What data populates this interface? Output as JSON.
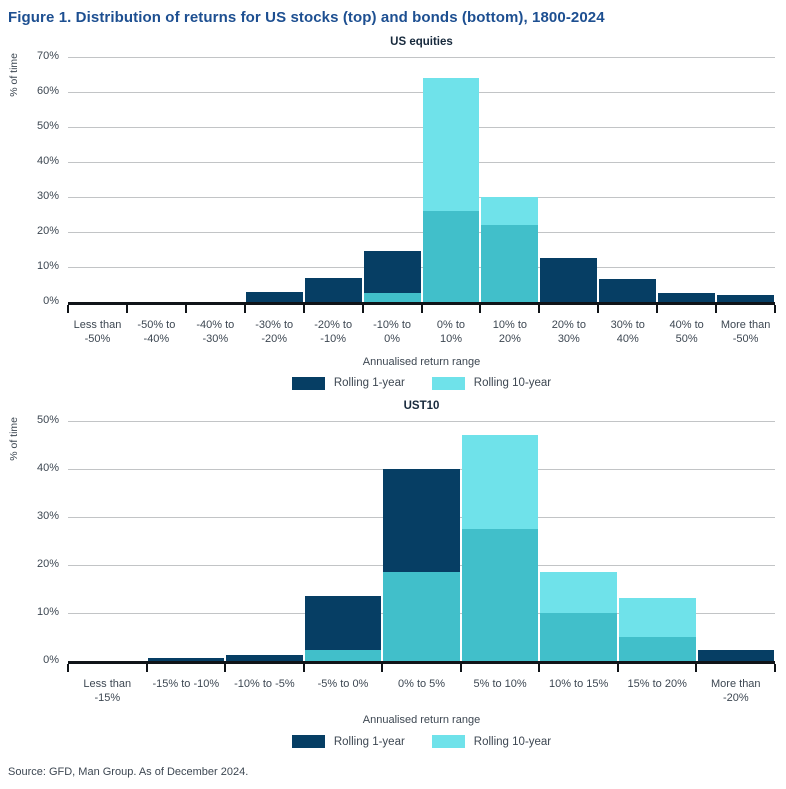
{
  "figure_title": "Figure 1. Distribution of returns for US stocks (top) and bonds (bottom), 1800-2024",
  "footer": "Source: GFD, Man Group. As of December 2024.",
  "colors": {
    "navy": "#063e64",
    "cyan": "#6fe2ea",
    "overlap": "#41bfca",
    "title_blue": "#1d4f91",
    "grid": "#c2c4c6",
    "axis": "#101418",
    "text": "#3d4752"
  },
  "chart_data": [
    {
      "type": "bar",
      "title": "US equities",
      "ylabel": "% of time",
      "xlabel": "Annualised return range",
      "ylim": [
        0,
        70
      ],
      "ytick_step": 10,
      "grid": true,
      "legend_position": "bottom",
      "bar_style": "overlapping",
      "categories": [
        "Less than -50%",
        "-50% to -40%",
        "-40% to -30%",
        "-30% to -20%",
        "-20% to -10%",
        "-10% to 0%",
        "0% to 10%",
        "10% to 20%",
        "20% to 30%",
        "30% to 40%",
        "40% to 50%",
        "More than -50%"
      ],
      "series": [
        {
          "name": "Rolling 1-year",
          "values": [
            0,
            0,
            0,
            3,
            7,
            14.5,
            26,
            22,
            12.5,
            6.5,
            2.5,
            2
          ]
        },
        {
          "name": "Rolling 10-year",
          "values": [
            0,
            0,
            0,
            0,
            0,
            2.5,
            64,
            30,
            0,
            0,
            0,
            0
          ]
        }
      ]
    },
    {
      "type": "bar",
      "title": "UST10",
      "ylabel": "% of time",
      "xlabel": "Annualised return range",
      "ylim": [
        0,
        50
      ],
      "ytick_step": 10,
      "grid": true,
      "legend_position": "bottom",
      "bar_style": "overlapping",
      "categories": [
        "Less than -15%",
        "-15% to -10%",
        "-10% to -5%",
        "-5% to 0%",
        "0% to 5%",
        "5% to 10%",
        "10% to 15%",
        "15% to 20%",
        "More than -20%"
      ],
      "series": [
        {
          "name": "Rolling 1-year",
          "values": [
            0,
            0.5,
            1.2,
            13.5,
            40,
            27.5,
            10,
            5,
            2.2
          ]
        },
        {
          "name": "Rolling 10-year",
          "values": [
            0,
            0,
            0,
            2.2,
            18.5,
            47,
            18.5,
            13,
            0
          ]
        }
      ]
    }
  ]
}
